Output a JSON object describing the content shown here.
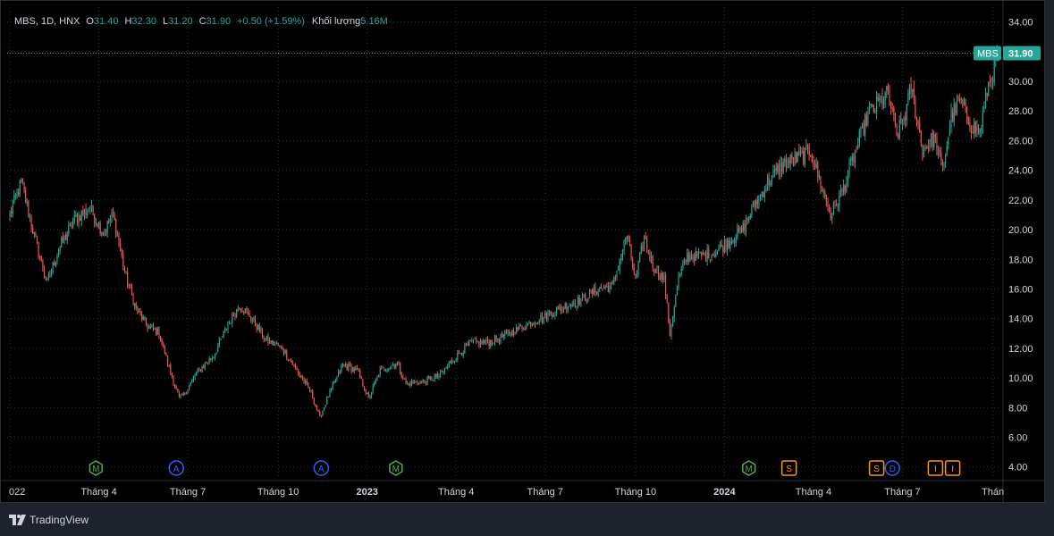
{
  "legend": {
    "symbol": "MBS, 1D, HNX",
    "open_label": "O",
    "open": "31.40",
    "high_label": "H",
    "high": "32.30",
    "low_label": "L",
    "low": "31.20",
    "close_label": "C",
    "close": "31.90",
    "change": "+0.50 (+1.59%)",
    "volume_label": "Khối lượng",
    "volume": "5.16M"
  },
  "price_tag": {
    "symbol": "MBS",
    "value": "31.90"
  },
  "footer": {
    "brand": "TradingView"
  },
  "colors": {
    "up": "#26a69a",
    "down": "#ef5350",
    "grid": "#2a2e39",
    "text": "#d1d4dc",
    "background": "#000000"
  },
  "chart_data": {
    "type": "candlestick",
    "ylim": [
      3.2,
      35.0
    ],
    "y_ticks": [
      "34.00",
      "32.00",
      "30.00",
      "28.00",
      "26.00",
      "24.00",
      "22.00",
      "20.00",
      "18.00",
      "16.00",
      "14.00",
      "12.00",
      "10.00",
      "8.00",
      "6.00",
      "4.00"
    ],
    "x_ticks": [
      {
        "label": "022",
        "index": 0
      },
      {
        "label": "Tháng 4",
        "index": 62
      },
      {
        "label": "Tháng 7",
        "index": 124
      },
      {
        "label": "Tháng 10",
        "index": 187
      },
      {
        "label": "2023",
        "index": 249
      },
      {
        "label": "Tháng 4",
        "index": 311
      },
      {
        "label": "Tháng 7",
        "index": 373
      },
      {
        "label": "Tháng 10",
        "index": 436
      },
      {
        "label": "2024",
        "index": 498
      },
      {
        "label": "Tháng 4",
        "index": 560
      },
      {
        "label": "Tháng 7",
        "index": 622
      },
      {
        "label": "Thán",
        "index": 685
      }
    ],
    "bars": 690,
    "path": [
      [
        0,
        21.0
      ],
      [
        8,
        23.2
      ],
      [
        18,
        19.2
      ],
      [
        26,
        16.4
      ],
      [
        34,
        18.7
      ],
      [
        46,
        20.8
      ],
      [
        56,
        21.4
      ],
      [
        65,
        19.8
      ],
      [
        72,
        21.0
      ],
      [
        80,
        17.2
      ],
      [
        88,
        14.6
      ],
      [
        96,
        13.5
      ],
      [
        104,
        13.0
      ],
      [
        112,
        10.4
      ],
      [
        118,
        8.6
      ],
      [
        122,
        9.0
      ],
      [
        130,
        10.3
      ],
      [
        142,
        11.5
      ],
      [
        152,
        13.6
      ],
      [
        160,
        14.9
      ],
      [
        168,
        14.1
      ],
      [
        178,
        12.6
      ],
      [
        190,
        12.0
      ],
      [
        200,
        10.5
      ],
      [
        210,
        9.0
      ],
      [
        216,
        7.3
      ],
      [
        222,
        8.8
      ],
      [
        232,
        10.9
      ],
      [
        242,
        10.5
      ],
      [
        250,
        8.6
      ],
      [
        258,
        10.5
      ],
      [
        270,
        11.0
      ],
      [
        276,
        9.6
      ],
      [
        290,
        9.8
      ],
      [
        300,
        10.2
      ],
      [
        310,
        11.4
      ],
      [
        322,
        12.4
      ],
      [
        334,
        12.4
      ],
      [
        348,
        13.0
      ],
      [
        360,
        13.6
      ],
      [
        374,
        14.2
      ],
      [
        386,
        14.8
      ],
      [
        398,
        15.3
      ],
      [
        410,
        16.0
      ],
      [
        420,
        16.2
      ],
      [
        430,
        19.6
      ],
      [
        436,
        16.6
      ],
      [
        442,
        19.5
      ],
      [
        448,
        17.6
      ],
      [
        456,
        16.6
      ],
      [
        460,
        13.0
      ],
      [
        466,
        16.7
      ],
      [
        472,
        18.2
      ],
      [
        480,
        18.2
      ],
      [
        492,
        18.5
      ],
      [
        502,
        19.3
      ],
      [
        510,
        19.9
      ],
      [
        518,
        21.5
      ],
      [
        528,
        23.2
      ],
      [
        540,
        24.5
      ],
      [
        550,
        24.8
      ],
      [
        558,
        25.3
      ],
      [
        564,
        23.4
      ],
      [
        572,
        21.0
      ],
      [
        580,
        22.5
      ],
      [
        590,
        25.5
      ],
      [
        598,
        27.8
      ],
      [
        604,
        28.4
      ],
      [
        612,
        29.2
      ],
      [
        618,
        26.3
      ],
      [
        624,
        27.8
      ],
      [
        628,
        29.6
      ],
      [
        636,
        25.4
      ],
      [
        644,
        26.2
      ],
      [
        650,
        24.0
      ],
      [
        656,
        27.6
      ],
      [
        662,
        28.7
      ],
      [
        670,
        27.0
      ],
      [
        676,
        26.6
      ],
      [
        682,
        29.8
      ],
      [
        689,
        31.9
      ]
    ],
    "event_markers": [
      {
        "label": "M",
        "index": 60,
        "color": "#4caf50",
        "shape": "hex"
      },
      {
        "label": "A",
        "index": 116,
        "color": "#2962ff",
        "shape": "circle"
      },
      {
        "label": "A",
        "index": 217,
        "color": "#2962ff",
        "shape": "circle"
      },
      {
        "label": "M",
        "index": 269,
        "color": "#4caf50",
        "shape": "hex"
      },
      {
        "label": "M",
        "index": 515,
        "color": "#4caf50",
        "shape": "hex"
      },
      {
        "label": "S",
        "index": 543,
        "color": "#ff9800",
        "shape": "square"
      },
      {
        "label": "S",
        "index": 604,
        "color": "#ff9800",
        "shape": "square"
      },
      {
        "label": "D",
        "index": 615,
        "color": "#2962ff",
        "shape": "circle"
      },
      {
        "label": "I",
        "index": 645,
        "color": "#ff9800",
        "shape": "square"
      },
      {
        "label": "I",
        "index": 657,
        "color": "#ff9800",
        "shape": "square"
      }
    ]
  }
}
